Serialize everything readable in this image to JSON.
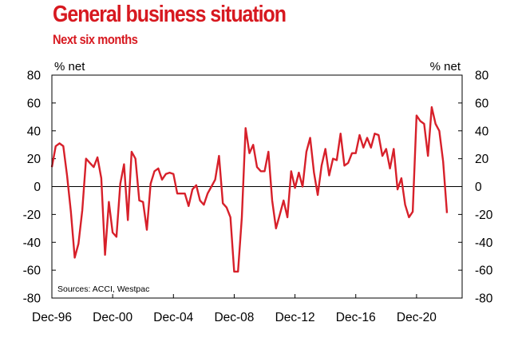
{
  "chart_data": {
    "type": "line",
    "title": "General business situation",
    "subtitle": "Next six months",
    "ylabel_left": "% net",
    "ylabel_right": "% net",
    "source": "Sources: ACCI, Westpac",
    "ylim": [
      -80,
      80
    ],
    "yticks": [
      80,
      60,
      40,
      20,
      0,
      -20,
      -40,
      -60,
      -80
    ],
    "x_range": [
      1996.917,
      2023.917
    ],
    "xticks": [
      {
        "label": "Dec-96",
        "x": 1996.917
      },
      {
        "label": "Dec-00",
        "x": 2000.917
      },
      {
        "label": "Dec-04",
        "x": 2004.917
      },
      {
        "label": "Dec-08",
        "x": 2008.917
      },
      {
        "label": "Dec-12",
        "x": 2012.917
      },
      {
        "label": "Dec-16",
        "x": 2016.917
      },
      {
        "label": "Dec-20",
        "x": 2020.917
      }
    ],
    "series": [
      {
        "name": "General business situation, next six months",
        "color": "#d7202a",
        "frequency": "quarterly",
        "x_start": 1996.917,
        "x_step": 0.25,
        "values": [
          14,
          29,
          31,
          29,
          8,
          -18,
          -51,
          -41,
          -17,
          20,
          17,
          14,
          21,
          6,
          -49,
          -11,
          -33,
          -36,
          2,
          16,
          -24,
          25,
          20,
          -10,
          -11,
          -31,
          2,
          11,
          13,
          5,
          9,
          10,
          9,
          -5,
          -5,
          -5,
          -14,
          -2,
          1,
          -10,
          -13,
          -5,
          0,
          5,
          22,
          -12,
          -15,
          -22,
          -61,
          -61,
          -22,
          42,
          24,
          30,
          14,
          11,
          11,
          25,
          -10,
          -30,
          -20,
          -10,
          -22,
          11,
          -1,
          10,
          0,
          25,
          35,
          10,
          -6,
          15,
          27,
          8,
          20,
          19,
          38,
          15,
          17,
          24,
          24,
          37,
          28,
          35,
          28,
          38,
          37,
          22,
          27,
          13,
          27,
          -2,
          6,
          -13,
          -22,
          -18,
          51,
          47,
          45,
          22,
          57,
          45,
          40,
          18,
          -19
        ]
      }
    ]
  }
}
